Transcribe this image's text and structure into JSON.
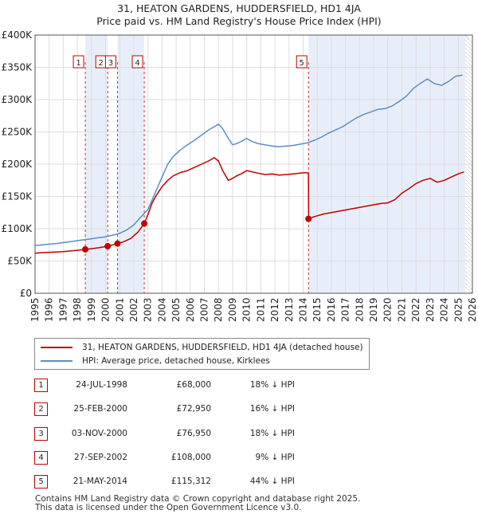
{
  "title_line1": "31, HEATON GARDENS, HUDDERSFIELD, HD1 4JA",
  "title_line2": "Price paid vs. HM Land Registry's House Price Index (HPI)",
  "chart_data": {
    "type": "line",
    "title": "31, HEATON GARDENS, HUDDERSFIELD, HD1 4JA — Price paid vs. HM Land Registry's House Price Index (HPI)",
    "xlim": [
      1995,
      2026
    ],
    "ylim": [
      0,
      400000
    ],
    "x_ticks": [
      1995,
      1996,
      1997,
      1998,
      1999,
      2000,
      2001,
      2002,
      2003,
      2004,
      2005,
      2006,
      2007,
      2008,
      2009,
      2010,
      2011,
      2012,
      2013,
      2014,
      2015,
      2016,
      2017,
      2018,
      2019,
      2020,
      2021,
      2022,
      2023,
      2024,
      2025,
      2026
    ],
    "y_ticks": [
      0,
      50000,
      100000,
      150000,
      200000,
      250000,
      300000,
      350000,
      400000
    ],
    "y_tick_labels": [
      "£0",
      "£50K",
      "£100K",
      "£150K",
      "£200K",
      "£250K",
      "£300K",
      "£350K",
      "£400K"
    ],
    "grid": true,
    "series": [
      {
        "name": "31, HEATON GARDENS, HUDDERSFIELD, HD1 4JA (detached house)",
        "color": "#c00000",
        "x": [
          1995.0,
          1995.5,
          1996.0,
          1996.5,
          1997.0,
          1997.5,
          1998.0,
          1998.56,
          1999.0,
          1999.5,
          2000.15,
          2000.5,
          2000.84,
          2001.3,
          2001.8,
          2002.3,
          2002.74,
          2003.0,
          2003.3,
          2003.6,
          2004.0,
          2004.4,
          2004.8,
          2005.3,
          2005.8,
          2006.3,
          2006.8,
          2007.3,
          2007.7,
          2008.0,
          2008.3,
          2008.7,
          2009.0,
          2009.3,
          2009.6,
          2010.0,
          2010.4,
          2010.8,
          2011.3,
          2011.8,
          2012.3,
          2012.8,
          2013.3,
          2013.8,
          2014.2,
          2014.38,
          2014.39,
          2014.7,
          2015.0,
          2015.5,
          2016.0,
          2016.5,
          2017.0,
          2017.5,
          2018.0,
          2018.5,
          2019.0,
          2019.5,
          2020.0,
          2020.5,
          2021.0,
          2021.5,
          2022.0,
          2022.5,
          2023.0,
          2023.5,
          2024.0,
          2024.5,
          2025.0,
          2025.4
        ],
        "values": [
          62000,
          63000,
          63500,
          64000,
          64500,
          65500,
          66500,
          68000,
          69000,
          70500,
          72950,
          75000,
          76950,
          80000,
          85000,
          95000,
          108000,
          122000,
          140000,
          152000,
          165000,
          175000,
          182000,
          187000,
          190000,
          195000,
          200000,
          205000,
          210000,
          205000,
          190000,
          175000,
          178000,
          182000,
          185000,
          190000,
          188000,
          186000,
          184000,
          185000,
          183000,
          184000,
          185000,
          186000,
          187000,
          186000,
          115312,
          118000,
          120000,
          123000,
          125000,
          127000,
          129000,
          131000,
          133000,
          135000,
          137000,
          139000,
          140000,
          145000,
          155000,
          162000,
          170000,
          175000,
          178000,
          172000,
          175000,
          180000,
          185000,
          188000
        ]
      },
      {
        "name": "HPI: Average price, detached house, Kirklees",
        "color": "#5b8ec5",
        "x": [
          1995.0,
          1995.5,
          1996.0,
          1996.5,
          1997.0,
          1997.5,
          1998.0,
          1998.5,
          1999.0,
          1999.5,
          2000.0,
          2000.5,
          2001.0,
          2001.5,
          2002.0,
          2002.5,
          2003.0,
          2003.3,
          2003.6,
          2004.0,
          2004.4,
          2004.8,
          2005.3,
          2005.8,
          2006.3,
          2006.8,
          2007.3,
          2007.7,
          2008.0,
          2008.3,
          2008.7,
          2009.0,
          2009.3,
          2009.6,
          2010.0,
          2010.4,
          2010.8,
          2011.3,
          2011.8,
          2012.3,
          2012.8,
          2013.3,
          2013.8,
          2014.3,
          2014.8,
          2015.3,
          2015.8,
          2016.3,
          2016.8,
          2017.3,
          2017.8,
          2018.3,
          2018.8,
          2019.3,
          2019.8,
          2020.3,
          2020.8,
          2021.3,
          2021.8,
          2022.3,
          2022.8,
          2023.3,
          2023.8,
          2024.3,
          2024.8,
          2025.3
        ],
        "values": [
          74000,
          75000,
          76000,
          77000,
          78500,
          80000,
          81500,
          83000,
          84500,
          86000,
          87500,
          90000,
          93000,
          98000,
          106000,
          118000,
          130000,
          145000,
          160000,
          180000,
          200000,
          212000,
          222000,
          230000,
          237000,
          245000,
          253000,
          258000,
          262000,
          255000,
          240000,
          230000,
          232000,
          235000,
          240000,
          235000,
          232000,
          230000,
          228000,
          227000,
          228000,
          229000,
          231000,
          233000,
          237000,
          242000,
          248000,
          253000,
          258000,
          265000,
          272000,
          277000,
          281000,
          285000,
          286000,
          290000,
          297000,
          305000,
          317000,
          325000,
          332000,
          325000,
          322000,
          328000,
          336000,
          338000
        ]
      }
    ],
    "sales": [
      {
        "label": "1",
        "x": 1998.56,
        "value": 68000
      },
      {
        "label": "2",
        "x": 2000.15,
        "value": 72950
      },
      {
        "label": "3",
        "x": 2000.84,
        "value": 76950
      },
      {
        "label": "4",
        "x": 2002.74,
        "value": 108000
      },
      {
        "label": "5",
        "x": 2014.38,
        "value": 115312
      }
    ],
    "shaded_spans": [
      [
        1998.56,
        2000.15
      ],
      [
        2000.84,
        2002.74
      ],
      [
        2014.38,
        2025.5
      ]
    ]
  },
  "legend": {
    "property": "31, HEATON GARDENS, HUDDERSFIELD, HD1 4JA (detached house)",
    "hpi": "HPI: Average price, detached house, Kirklees"
  },
  "transactions": [
    {
      "num": "1",
      "date": "24-JUL-1998",
      "price": "£68,000",
      "hpi": "18% ↓ HPI"
    },
    {
      "num": "2",
      "date": "25-FEB-2000",
      "price": "£72,950",
      "hpi": "16% ↓ HPI"
    },
    {
      "num": "3",
      "date": "03-NOV-2000",
      "price": "£76,950",
      "hpi": "18% ↓ HPI"
    },
    {
      "num": "4",
      "date": "27-SEP-2002",
      "price": "£108,000",
      "hpi": "9% ↓ HPI"
    },
    {
      "num": "5",
      "date": "21-MAY-2014",
      "price": "£115,312",
      "hpi": "44% ↓ HPI"
    }
  ],
  "footer": {
    "line1": "Contains HM Land Registry data © Crown copyright and database right 2025.",
    "line2": "This data is licensed under the Open Government Licence v3.0."
  },
  "colors": {
    "property": "#c00000",
    "hpi": "#5b8ec5",
    "shade": "#e8eef9",
    "grid": "#dddddd"
  }
}
